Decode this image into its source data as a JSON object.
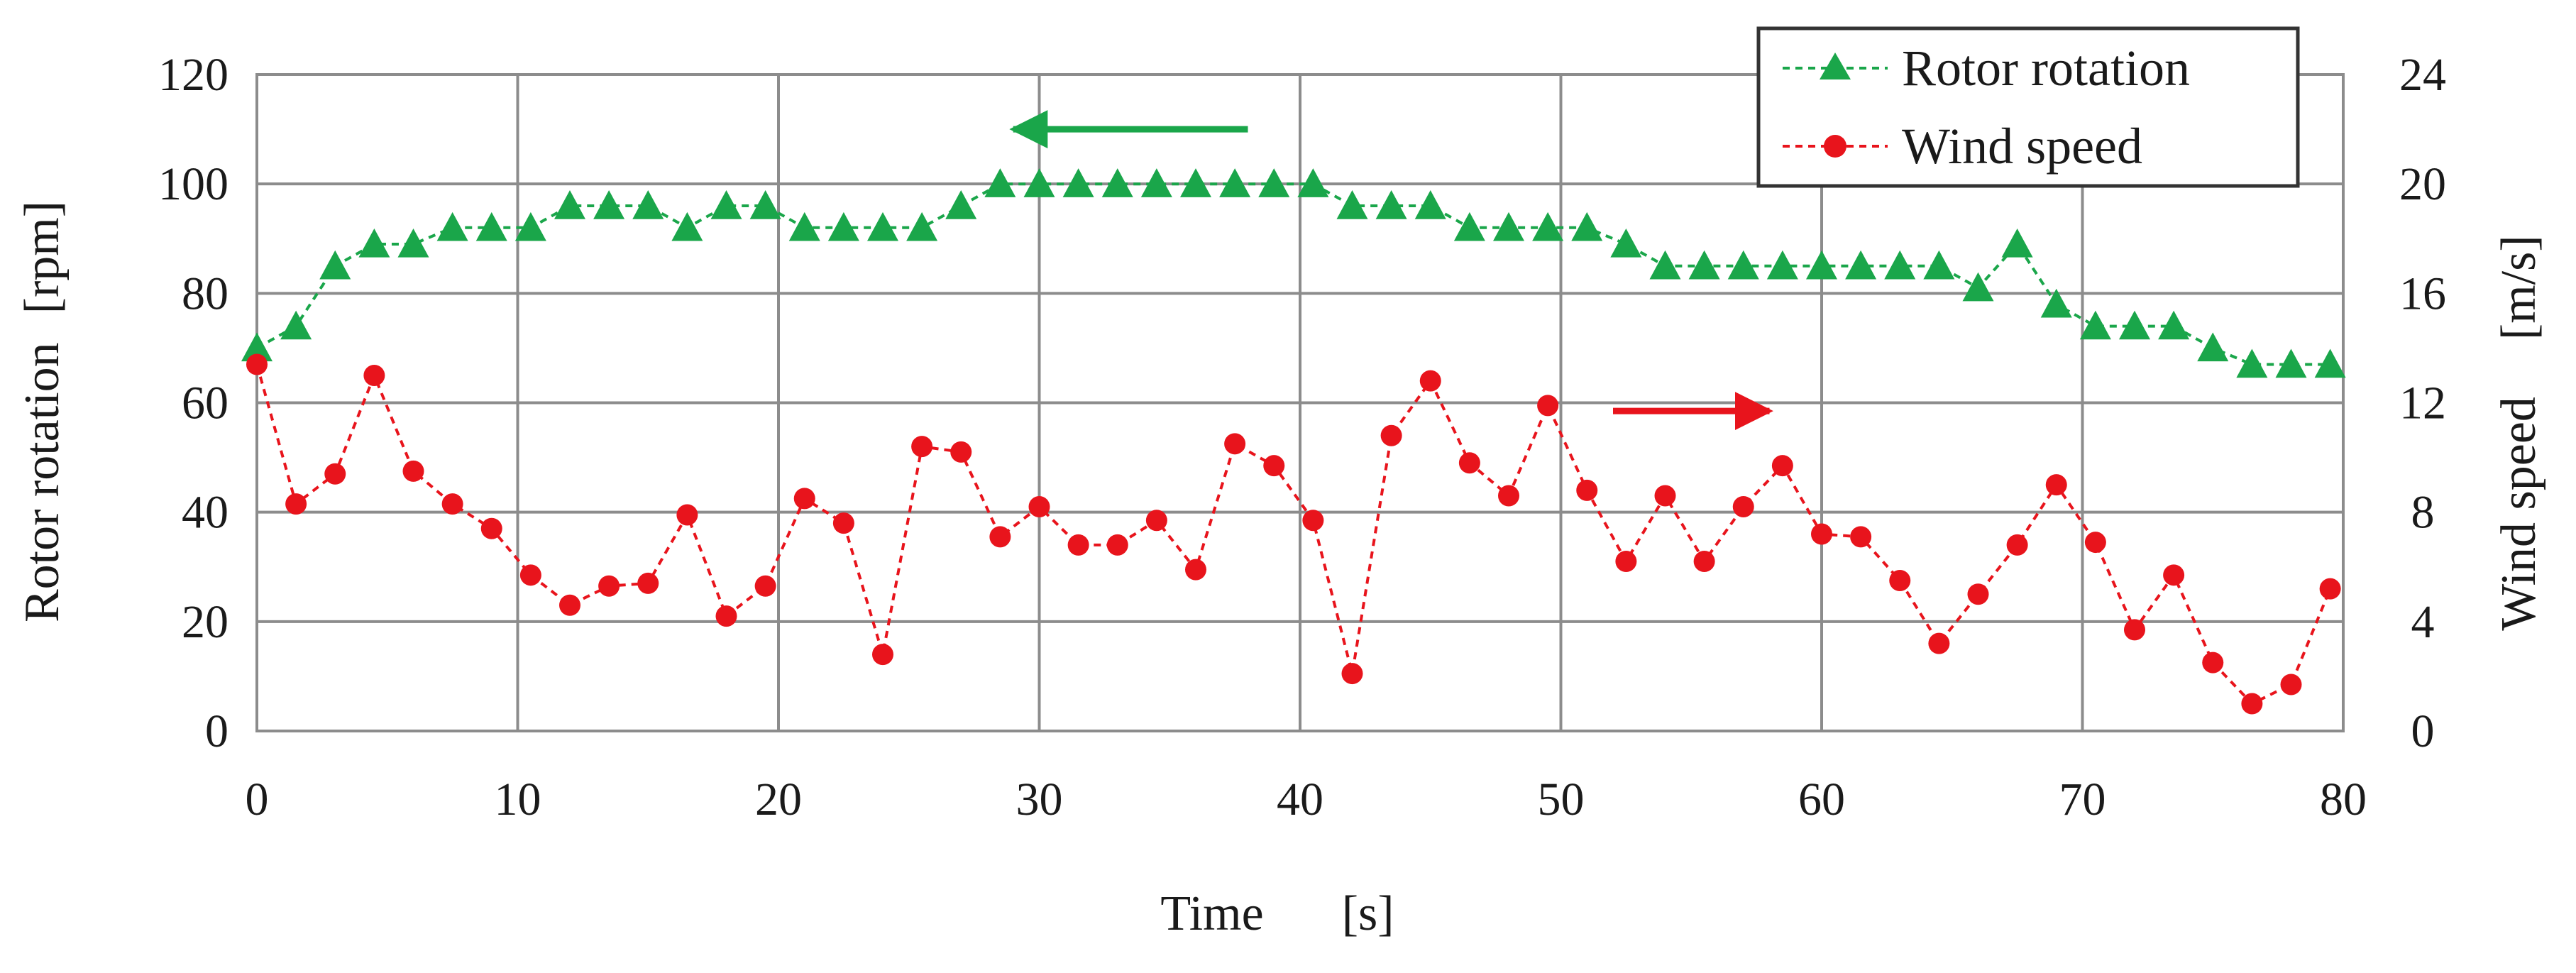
{
  "chart_data": {
    "type": "line",
    "xlabel": "Time",
    "xunit": "[s]",
    "ylabel": "Rotor rotation",
    "yunit": "[rpm]",
    "y2label": "Wind speed",
    "y2unit": "[m/s]",
    "xlim": [
      0,
      80
    ],
    "ylim": [
      0,
      120
    ],
    "y2lim": [
      0,
      24
    ],
    "xticks": [
      0,
      10,
      20,
      30,
      40,
      50,
      60,
      70,
      80
    ],
    "yticks": [
      0,
      20,
      40,
      60,
      80,
      100,
      120
    ],
    "y2ticks": [
      0,
      4,
      8,
      12,
      16,
      20,
      24
    ],
    "grid": true,
    "legend_position": "top-right",
    "series": [
      {
        "name": "Rotor rotation",
        "axis": "left",
        "color": "#1aa64a",
        "marker": "triangle",
        "x": [
          0,
          1.5,
          3,
          4.5,
          6,
          7.5,
          9,
          10.5,
          12,
          13.5,
          15,
          16.5,
          18,
          19.5,
          21,
          22.5,
          24,
          25.5,
          27,
          28.5,
          30,
          31.5,
          33,
          34.5,
          36,
          37.5,
          39,
          40.5,
          42,
          43.5,
          45,
          46.5,
          48,
          49.5,
          51,
          52.5,
          54,
          55.5,
          57,
          58.5,
          60,
          61.5,
          63,
          64.5,
          66,
          67.5,
          69,
          70.5,
          72,
          73.5,
          75,
          76.5,
          78,
          79.5
        ],
        "values": [
          70,
          74,
          85,
          89,
          89,
          92,
          92,
          92,
          96,
          96,
          96,
          92,
          96,
          96,
          92,
          92,
          92,
          92,
          96,
          100,
          100,
          100,
          100,
          100,
          100,
          100,
          100,
          100,
          96,
          96,
          96,
          92,
          92,
          92,
          92,
          89,
          85,
          85,
          85,
          85,
          85,
          85,
          85,
          85,
          81,
          89,
          78,
          74,
          74,
          74,
          70,
          67,
          67,
          67
        ]
      },
      {
        "name": "Wind speed",
        "axis": "right",
        "color": "#e8141c",
        "marker": "circle",
        "x": [
          0,
          1.5,
          3,
          4.5,
          6,
          7.5,
          9,
          10.5,
          12,
          13.5,
          15,
          16.5,
          18,
          19.5,
          21,
          22.5,
          24,
          25.5,
          27,
          28.5,
          30,
          31.5,
          33,
          34.5,
          36,
          37.5,
          39,
          40.5,
          42,
          43.5,
          45,
          46.5,
          48,
          49.5,
          51,
          52.5,
          54,
          55.5,
          57,
          58.5,
          60,
          61.5,
          63,
          64.5,
          66,
          67.5,
          69,
          70.5,
          72,
          73.5,
          75,
          76.5,
          78,
          79.5
        ],
        "values": [
          13.4,
          8.3,
          9.4,
          13,
          9.5,
          8.3,
          7.4,
          5.7,
          4.6,
          5.3,
          5.4,
          7.9,
          4.2,
          5.3,
          8.5,
          7.6,
          2.8,
          10.4,
          10.2,
          7.1,
          8.2,
          6.8,
          6.8,
          7.7,
          5.9,
          10.5,
          9.7,
          7.7,
          2.1,
          10.8,
          12.8,
          9.8,
          8.6,
          11.9,
          8.8,
          6.2,
          8.6,
          6.2,
          8.2,
          9.7,
          7.2,
          7.1,
          5.5,
          3.2,
          5,
          6.8,
          9,
          6.9,
          3.7,
          5.7,
          2.5,
          1,
          1.7,
          5.2
        ]
      }
    ],
    "annotations": [
      {
        "type": "arrow",
        "direction": "left",
        "color": "#1aa64a",
        "x": [
          29,
          38
        ],
        "y": 110
      },
      {
        "type": "arrow",
        "direction": "right",
        "color": "#e8141c",
        "x_start": 52,
        "x_end": 58,
        "y2": 11.7
      }
    ]
  }
}
